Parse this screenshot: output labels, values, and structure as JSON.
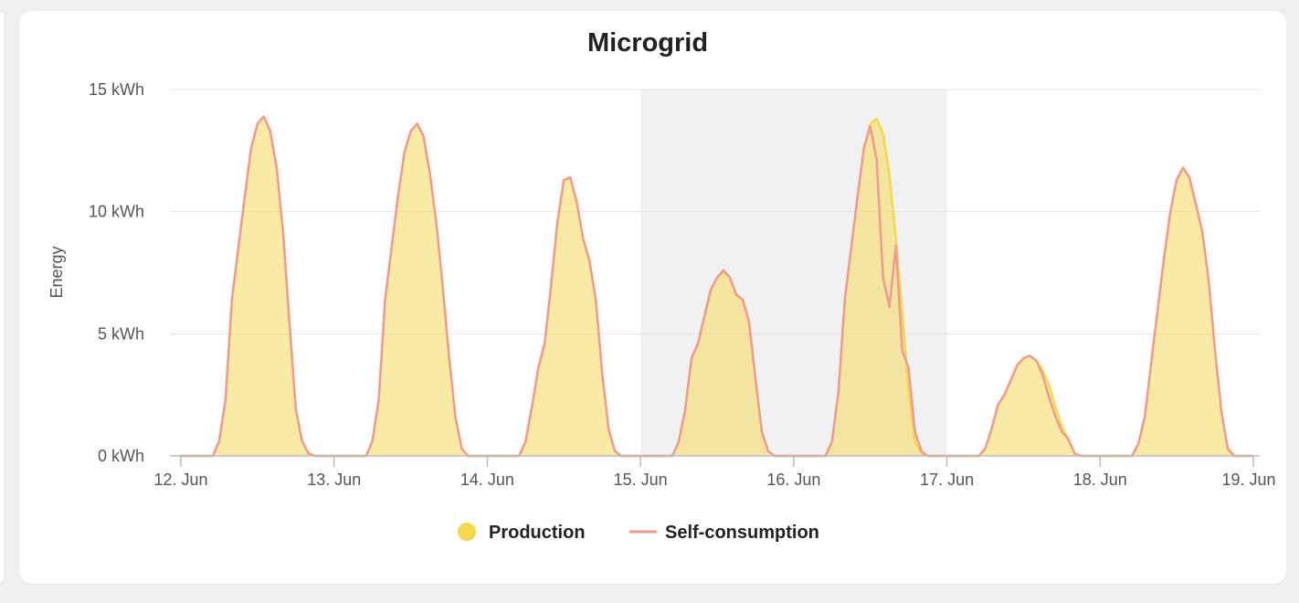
{
  "chart_data": {
    "type": "area",
    "title": "Microgrid",
    "xlabel": "",
    "ylabel": "Energy",
    "y_unit": "kWh",
    "ylim": [
      0,
      15
    ],
    "y_ticks": [
      0,
      5,
      10,
      15
    ],
    "y_tick_labels": [
      "0 kWh",
      "5 kWh",
      "10 kWh",
      "15 kWh"
    ],
    "x_start": "2023-06-12",
    "x_end": "2023-06-19",
    "x_tick_labels": [
      "12. Jun",
      "13. Jun",
      "14. Jun",
      "15. Jun",
      "16. Jun",
      "17. Jun",
      "18. Jun",
      "19. Jun"
    ],
    "highlight_band": {
      "from": "15. Jun",
      "to": "17. Jun"
    },
    "grid": true,
    "legend_position": "bottom",
    "series": [
      {
        "name": "Production",
        "kind": "area",
        "color": "#f5d84a",
        "points": [
          [
            "12. Jun 00:00",
            0
          ],
          [
            "12. Jun 05:00",
            0
          ],
          [
            "12. Jun 06:00",
            0.6
          ],
          [
            "12. Jun 07:00",
            2.3
          ],
          [
            "12. Jun 08:00",
            6.4
          ],
          [
            "12. Jun 10:00",
            10.6
          ],
          [
            "12. Jun 11:00",
            12.6
          ],
          [
            "12. Jun 12:00",
            13.6
          ],
          [
            "12. Jun 13:00",
            13.9
          ],
          [
            "12. Jun 14:00",
            13.3
          ],
          [
            "12. Jun 15:00",
            11.8
          ],
          [
            "12. Jun 16:00",
            9.2
          ],
          [
            "12. Jun 17:00",
            5.5
          ],
          [
            "12. Jun 18:00",
            1.9
          ],
          [
            "12. Jun 19:00",
            0.6
          ],
          [
            "12. Jun 20:00",
            0.1
          ],
          [
            "12. Jun 21:00",
            0
          ],
          [
            "13. Jun 05:00",
            0
          ],
          [
            "13. Jun 06:00",
            0.6
          ],
          [
            "13. Jun 07:00",
            2.3
          ],
          [
            "13. Jun 08:00",
            6.4
          ],
          [
            "13. Jun 10:00",
            10.6
          ],
          [
            "13. Jun 11:00",
            12.4
          ],
          [
            "13. Jun 12:00",
            13.3
          ],
          [
            "13. Jun 13:00",
            13.6
          ],
          [
            "13. Jun 14:00",
            13.1
          ],
          [
            "13. Jun 15:00",
            11.6
          ],
          [
            "13. Jun 16:00",
            9.6
          ],
          [
            "13. Jun 17:00",
            7.0
          ],
          [
            "13. Jun 18:00",
            4.1
          ],
          [
            "13. Jun 19:00",
            1.6
          ],
          [
            "13. Jun 20:00",
            0.3
          ],
          [
            "13. Jun 21:00",
            0
          ],
          [
            "14. Jun 05:00",
            0
          ],
          [
            "14. Jun 06:00",
            0.6
          ],
          [
            "14. Jun 07:00",
            2.0
          ],
          [
            "14. Jun 08:00",
            3.6
          ],
          [
            "14. Jun 09:00",
            4.6
          ],
          [
            "14. Jun 10:00",
            7.0
          ],
          [
            "14. Jun 11:00",
            9.6
          ],
          [
            "14. Jun 12:00",
            11.3
          ],
          [
            "14. Jun 13:00",
            11.4
          ],
          [
            "14. Jun 14:00",
            10.4
          ],
          [
            "14. Jun 15:00",
            8.9
          ],
          [
            "14. Jun 16:00",
            8.0
          ],
          [
            "14. Jun 17:00",
            6.4
          ],
          [
            "14. Jun 18:00",
            3.4
          ],
          [
            "14. Jun 19:00",
            1.1
          ],
          [
            "14. Jun 20:00",
            0.2
          ],
          [
            "14. Jun 21:00",
            0
          ],
          [
            "15. Jun 05:00",
            0
          ],
          [
            "15. Jun 06:00",
            0.6
          ],
          [
            "15. Jun 07:00",
            1.9
          ],
          [
            "15. Jun 08:00",
            4.0
          ],
          [
            "15. Jun 09:00",
            4.6
          ],
          [
            "15. Jun 10:00",
            5.7
          ],
          [
            "15. Jun 11:00",
            6.8
          ],
          [
            "15. Jun 12:00",
            7.3
          ],
          [
            "15. Jun 13:00",
            7.6
          ],
          [
            "15. Jun 14:00",
            7.3
          ],
          [
            "15. Jun 15:00",
            6.6
          ],
          [
            "15. Jun 16:00",
            6.4
          ],
          [
            "15. Jun 17:00",
            5.5
          ],
          [
            "15. Jun 18:00",
            3.2
          ],
          [
            "15. Jun 19:00",
            1.0
          ],
          [
            "15. Jun 20:00",
            0.2
          ],
          [
            "15. Jun 21:00",
            0
          ],
          [
            "16. Jun 05:00",
            0
          ],
          [
            "16. Jun 06:00",
            0.6
          ],
          [
            "16. Jun 07:00",
            2.6
          ],
          [
            "16. Jun 08:00",
            6.4
          ],
          [
            "16. Jun 10:00",
            10.6
          ],
          [
            "16. Jun 11:00",
            12.6
          ],
          [
            "16. Jun 12:00",
            13.6
          ],
          [
            "16. Jun 13:00",
            13.8
          ],
          [
            "16. Jun 14:00",
            13.2
          ],
          [
            "16. Jun 15:00",
            11.5
          ],
          [
            "16. Jun 16:00",
            8.9
          ],
          [
            "16. Jun 17:00",
            5.9
          ],
          [
            "16. Jun 18:00",
            2.7
          ],
          [
            "16. Jun 19:00",
            0.6
          ],
          [
            "16. Jun 20:00",
            0.1
          ],
          [
            "16. Jun 21:00",
            0
          ],
          [
            "17. Jun 05:00",
            0
          ],
          [
            "17. Jun 06:00",
            0.3
          ],
          [
            "17. Jun 07:00",
            1.1
          ],
          [
            "17. Jun 08:00",
            2.1
          ],
          [
            "17. Jun 09:00",
            2.5
          ],
          [
            "17. Jun 10:00",
            3.1
          ],
          [
            "17. Jun 11:00",
            3.7
          ],
          [
            "17. Jun 12:00",
            4.0
          ],
          [
            "17. Jun 13:00",
            4.1
          ],
          [
            "17. Jun 14:00",
            3.9
          ],
          [
            "17. Jun 15:00",
            3.5
          ],
          [
            "17. Jun 16:00",
            2.9
          ],
          [
            "17. Jun 17:00",
            2.0
          ],
          [
            "17. Jun 18:00",
            1.2
          ],
          [
            "17. Jun 19:00",
            0.7
          ],
          [
            "17. Jun 20:00",
            0.1
          ],
          [
            "17. Jun 21:00",
            0
          ],
          [
            "18. Jun 05:00",
            0
          ],
          [
            "18. Jun 06:00",
            0.5
          ],
          [
            "18. Jun 07:00",
            1.6
          ],
          [
            "18. Jun 08:00",
            3.8
          ],
          [
            "18. Jun 10:00",
            8.1
          ],
          [
            "18. Jun 11:00",
            10.0
          ],
          [
            "18. Jun 12:00",
            11.3
          ],
          [
            "18. Jun 13:00",
            11.8
          ],
          [
            "18. Jun 14:00",
            11.4
          ],
          [
            "18. Jun 15:00",
            10.3
          ],
          [
            "18. Jun 16:00",
            9.2
          ],
          [
            "18. Jun 17:00",
            7.2
          ],
          [
            "18. Jun 18:00",
            4.3
          ],
          [
            "18. Jun 19:00",
            1.8
          ],
          [
            "18. Jun 20:00",
            0.3
          ],
          [
            "18. Jun 21:00",
            0
          ],
          [
            "19. Jun 00:00",
            0
          ]
        ]
      },
      {
        "name": "Self-consumption",
        "kind": "line",
        "color": "#ef9a92",
        "points": [
          [
            "12. Jun 00:00",
            0
          ],
          [
            "12. Jun 05:00",
            0
          ],
          [
            "12. Jun 06:00",
            0.6
          ],
          [
            "12. Jun 07:00",
            2.3
          ],
          [
            "12. Jun 08:00",
            6.4
          ],
          [
            "12. Jun 10:00",
            10.6
          ],
          [
            "12. Jun 11:00",
            12.6
          ],
          [
            "12. Jun 12:00",
            13.6
          ],
          [
            "12. Jun 13:00",
            13.9
          ],
          [
            "12. Jun 14:00",
            13.3
          ],
          [
            "12. Jun 15:00",
            11.8
          ],
          [
            "12. Jun 16:00",
            9.2
          ],
          [
            "12. Jun 17:00",
            5.5
          ],
          [
            "12. Jun 18:00",
            1.9
          ],
          [
            "12. Jun 19:00",
            0.6
          ],
          [
            "12. Jun 20:00",
            0.1
          ],
          [
            "12. Jun 21:00",
            0
          ],
          [
            "13. Jun 05:00",
            0
          ],
          [
            "13. Jun 06:00",
            0.6
          ],
          [
            "13. Jun 07:00",
            2.3
          ],
          [
            "13. Jun 08:00",
            6.4
          ],
          [
            "13. Jun 10:00",
            10.6
          ],
          [
            "13. Jun 11:00",
            12.4
          ],
          [
            "13. Jun 12:00",
            13.3
          ],
          [
            "13. Jun 13:00",
            13.6
          ],
          [
            "13. Jun 14:00",
            13.1
          ],
          [
            "13. Jun 15:00",
            11.6
          ],
          [
            "13. Jun 16:00",
            9.6
          ],
          [
            "13. Jun 17:00",
            7.0
          ],
          [
            "13. Jun 18:00",
            4.1
          ],
          [
            "13. Jun 19:00",
            1.6
          ],
          [
            "13. Jun 20:00",
            0.3
          ],
          [
            "13. Jun 21:00",
            0
          ],
          [
            "14. Jun 05:00",
            0
          ],
          [
            "14. Jun 06:00",
            0.6
          ],
          [
            "14. Jun 07:00",
            2.0
          ],
          [
            "14. Jun 08:00",
            3.6
          ],
          [
            "14. Jun 09:00",
            4.6
          ],
          [
            "14. Jun 10:00",
            7.0
          ],
          [
            "14. Jun 11:00",
            9.6
          ],
          [
            "14. Jun 12:00",
            11.3
          ],
          [
            "14. Jun 13:00",
            11.4
          ],
          [
            "14. Jun 14:00",
            10.4
          ],
          [
            "14. Jun 15:00",
            8.9
          ],
          [
            "14. Jun 16:00",
            8.0
          ],
          [
            "14. Jun 17:00",
            6.4
          ],
          [
            "14. Jun 18:00",
            3.4
          ],
          [
            "14. Jun 19:00",
            1.1
          ],
          [
            "14. Jun 20:00",
            0.2
          ],
          [
            "14. Jun 21:00",
            0
          ],
          [
            "15. Jun 05:00",
            0
          ],
          [
            "15. Jun 06:00",
            0.6
          ],
          [
            "15. Jun 07:00",
            1.9
          ],
          [
            "15. Jun 08:00",
            4.0
          ],
          [
            "15. Jun 09:00",
            4.6
          ],
          [
            "15. Jun 10:00",
            5.7
          ],
          [
            "15. Jun 11:00",
            6.8
          ],
          [
            "15. Jun 12:00",
            7.3
          ],
          [
            "15. Jun 13:00",
            7.6
          ],
          [
            "15. Jun 14:00",
            7.3
          ],
          [
            "15. Jun 15:00",
            6.6
          ],
          [
            "15. Jun 16:00",
            6.4
          ],
          [
            "15. Jun 17:00",
            5.5
          ],
          [
            "15. Jun 18:00",
            3.2
          ],
          [
            "15. Jun 19:00",
            1.0
          ],
          [
            "15. Jun 20:00",
            0.2
          ],
          [
            "15. Jun 21:00",
            0
          ],
          [
            "16. Jun 05:00",
            0
          ],
          [
            "16. Jun 06:00",
            0.6
          ],
          [
            "16. Jun 07:00",
            2.6
          ],
          [
            "16. Jun 08:00",
            6.4
          ],
          [
            "16. Jun 10:00",
            10.6
          ],
          [
            "16. Jun 11:00",
            12.6
          ],
          [
            "16. Jun 12:00",
            13.5
          ],
          [
            "16. Jun 13:00",
            12.1
          ],
          [
            "16. Jun 14:00",
            7.3
          ],
          [
            "16. Jun 15:00",
            6.1
          ],
          [
            "16. Jun 16:00",
            8.6
          ],
          [
            "16. Jun 17:00",
            4.3
          ],
          [
            "16. Jun 18:00",
            3.6
          ],
          [
            "16. Jun 19:00",
            1.0
          ],
          [
            "16. Jun 20:00",
            0.2
          ],
          [
            "16. Jun 21:00",
            0
          ],
          [
            "17. Jun 05:00",
            0
          ],
          [
            "17. Jun 06:00",
            0.3
          ],
          [
            "17. Jun 07:00",
            1.1
          ],
          [
            "17. Jun 08:00",
            2.1
          ],
          [
            "17. Jun 09:00",
            2.5
          ],
          [
            "17. Jun 10:00",
            3.1
          ],
          [
            "17. Jun 11:00",
            3.7
          ],
          [
            "17. Jun 12:00",
            4.0
          ],
          [
            "17. Jun 13:00",
            4.1
          ],
          [
            "17. Jun 14:00",
            3.9
          ],
          [
            "17. Jun 15:00",
            3.3
          ],
          [
            "17. Jun 16:00",
            2.4
          ],
          [
            "17. Jun 17:00",
            1.6
          ],
          [
            "17. Jun 18:00",
            1.0
          ],
          [
            "17. Jun 19:00",
            0.7
          ],
          [
            "17. Jun 20:00",
            0.1
          ],
          [
            "17. Jun 21:00",
            0
          ],
          [
            "18. Jun 05:00",
            0
          ],
          [
            "18. Jun 06:00",
            0.5
          ],
          [
            "18. Jun 07:00",
            1.6
          ],
          [
            "18. Jun 08:00",
            3.8
          ],
          [
            "18. Jun 10:00",
            8.1
          ],
          [
            "18. Jun 11:00",
            10.0
          ],
          [
            "18. Jun 12:00",
            11.3
          ],
          [
            "18. Jun 13:00",
            11.8
          ],
          [
            "18. Jun 14:00",
            11.4
          ],
          [
            "18. Jun 15:00",
            10.3
          ],
          [
            "18. Jun 16:00",
            9.2
          ],
          [
            "18. Jun 17:00",
            7.2
          ],
          [
            "18. Jun 18:00",
            4.3
          ],
          [
            "18. Jun 19:00",
            1.8
          ],
          [
            "18. Jun 20:00",
            0.3
          ],
          [
            "18. Jun 21:00",
            0
          ],
          [
            "19. Jun 00:00",
            0
          ]
        ]
      }
    ]
  },
  "colors": {
    "production_fill": "#f5d84a",
    "self_consumption_line": "#ef9a92",
    "band": "#f0f1f3",
    "grid": "#e3e3e3"
  }
}
